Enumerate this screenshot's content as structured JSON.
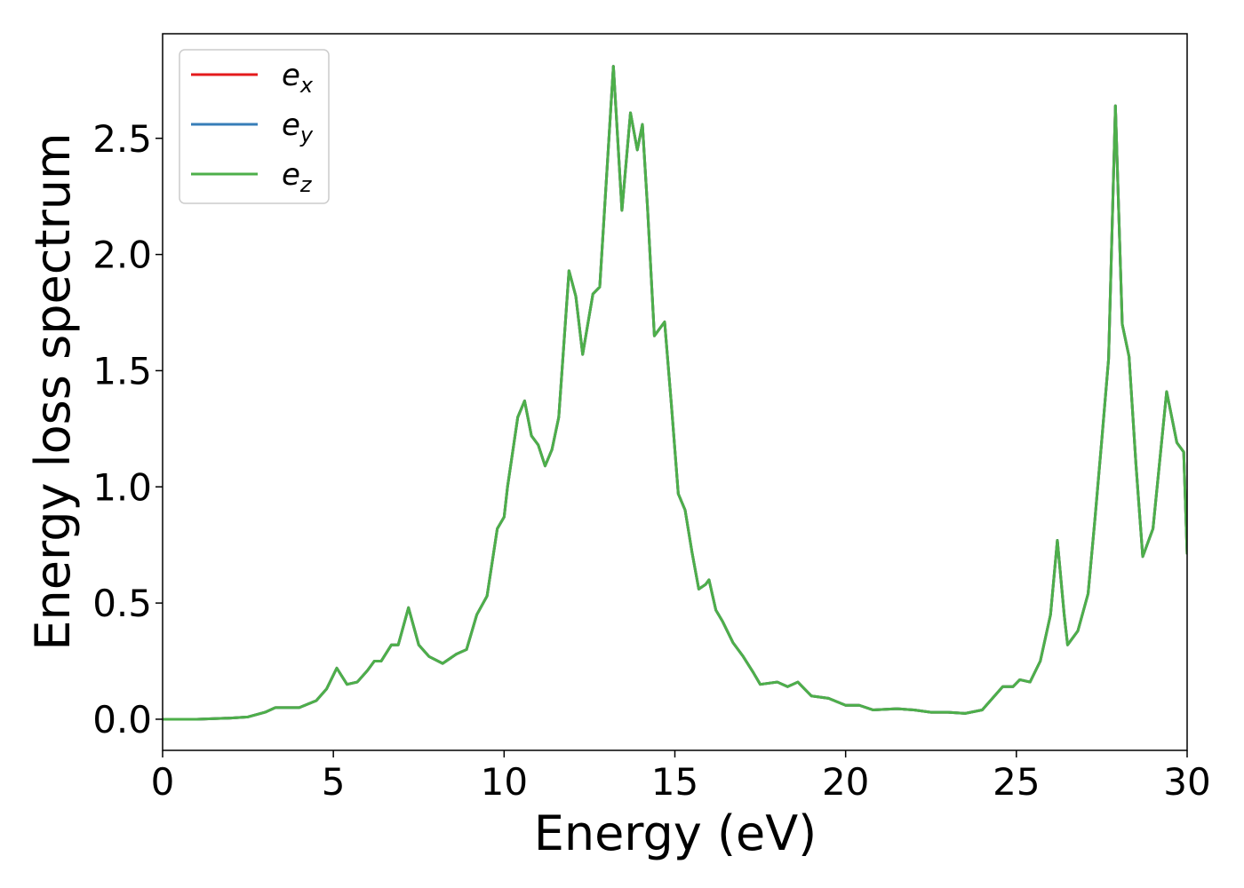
{
  "chart_data": {
    "type": "line",
    "xlabel": "Energy (eV)",
    "ylabel": "Energy loss spectrum",
    "x": [
      0,
      1,
      2,
      2.5,
      3,
      3.3,
      4,
      4.5,
      4.8,
      5.1,
      5.4,
      5.7,
      6,
      6.2,
      6.4,
      6.7,
      6.9,
      7.2,
      7.5,
      7.8,
      8.2,
      8.6,
      8.9,
      9.2,
      9.5,
      9.8,
      10,
      10.1,
      10.4,
      10.6,
      10.8,
      11,
      11.2,
      11.4,
      11.6,
      11.9,
      12.1,
      12.3,
      12.6,
      12.8,
      13.2,
      13.45,
      13.7,
      13.9,
      14.05,
      14.2,
      14.4,
      14.7,
      14.9,
      15.1,
      15.3,
      15.5,
      15.7,
      15.9,
      16,
      16.2,
      16.4,
      16.7,
      17,
      17.3,
      17.5,
      18,
      18.3,
      18.6,
      19,
      19.5,
      20,
      20.4,
      20.8,
      21.5,
      22,
      22.5,
      23,
      23.5,
      24,
      24.3,
      24.6,
      24.9,
      25.1,
      25.4,
      25.7,
      26,
      26.2,
      26.4,
      26.5,
      26.8,
      27.1,
      27.3,
      27.5,
      27.7,
      27.9,
      28.1,
      28.3,
      28.5,
      28.7,
      29,
      29.4,
      29.7,
      29.9,
      30
    ],
    "series": [
      {
        "name": "ex",
        "color": "#e41a1c",
        "values": [
          0,
          0,
          0.005,
          0.01,
          0.03,
          0.05,
          0.05,
          0.08,
          0.13,
          0.22,
          0.15,
          0.16,
          0.21,
          0.25,
          0.25,
          0.32,
          0.32,
          0.48,
          0.32,
          0.27,
          0.24,
          0.28,
          0.3,
          0.45,
          0.53,
          0.82,
          0.87,
          1.0,
          1.3,
          1.37,
          1.22,
          1.18,
          1.09,
          1.16,
          1.3,
          1.93,
          1.82,
          1.57,
          1.83,
          1.86,
          2.81,
          2.19,
          2.61,
          2.45,
          2.56,
          2.2,
          1.65,
          1.71,
          1.35,
          0.97,
          0.9,
          0.72,
          0.56,
          0.58,
          0.6,
          0.47,
          0.42,
          0.33,
          0.27,
          0.2,
          0.15,
          0.16,
          0.14,
          0.16,
          0.1,
          0.09,
          0.06,
          0.06,
          0.04,
          0.045,
          0.04,
          0.03,
          0.03,
          0.025,
          0.04,
          0.09,
          0.14,
          0.14,
          0.17,
          0.16,
          0.25,
          0.45,
          0.77,
          0.45,
          0.32,
          0.38,
          0.54,
          0.86,
          1.2,
          1.55,
          2.64,
          1.7,
          1.56,
          1.1,
          0.7,
          0.82,
          1.41,
          1.19,
          1.15,
          0.71
        ]
      },
      {
        "name": "ey",
        "color": "#377eb8",
        "values": [
          0,
          0,
          0.005,
          0.01,
          0.03,
          0.05,
          0.05,
          0.08,
          0.13,
          0.22,
          0.15,
          0.16,
          0.21,
          0.25,
          0.25,
          0.32,
          0.32,
          0.48,
          0.32,
          0.27,
          0.24,
          0.28,
          0.3,
          0.45,
          0.53,
          0.82,
          0.87,
          1.0,
          1.3,
          1.37,
          1.22,
          1.18,
          1.09,
          1.16,
          1.3,
          1.93,
          1.82,
          1.57,
          1.83,
          1.86,
          2.81,
          2.19,
          2.61,
          2.45,
          2.56,
          2.2,
          1.65,
          1.71,
          1.35,
          0.97,
          0.9,
          0.72,
          0.56,
          0.58,
          0.6,
          0.47,
          0.42,
          0.33,
          0.27,
          0.2,
          0.15,
          0.16,
          0.14,
          0.16,
          0.1,
          0.09,
          0.06,
          0.06,
          0.04,
          0.045,
          0.04,
          0.03,
          0.03,
          0.025,
          0.04,
          0.09,
          0.14,
          0.14,
          0.17,
          0.16,
          0.25,
          0.45,
          0.77,
          0.45,
          0.32,
          0.38,
          0.54,
          0.86,
          1.2,
          1.55,
          2.64,
          1.7,
          1.56,
          1.1,
          0.7,
          0.82,
          1.41,
          1.19,
          1.15,
          0.71
        ]
      },
      {
        "name": "ez",
        "color": "#4daf4a",
        "values": [
          0,
          0,
          0.005,
          0.01,
          0.03,
          0.05,
          0.05,
          0.08,
          0.13,
          0.22,
          0.15,
          0.16,
          0.21,
          0.25,
          0.25,
          0.32,
          0.32,
          0.48,
          0.32,
          0.27,
          0.24,
          0.28,
          0.3,
          0.45,
          0.53,
          0.82,
          0.87,
          1.0,
          1.3,
          1.37,
          1.22,
          1.18,
          1.09,
          1.16,
          1.3,
          1.93,
          1.82,
          1.57,
          1.83,
          1.86,
          2.81,
          2.19,
          2.61,
          2.45,
          2.56,
          2.2,
          1.65,
          1.71,
          1.35,
          0.97,
          0.9,
          0.72,
          0.56,
          0.58,
          0.6,
          0.47,
          0.42,
          0.33,
          0.27,
          0.2,
          0.15,
          0.16,
          0.14,
          0.16,
          0.1,
          0.09,
          0.06,
          0.06,
          0.04,
          0.045,
          0.04,
          0.03,
          0.03,
          0.025,
          0.04,
          0.09,
          0.14,
          0.14,
          0.17,
          0.16,
          0.25,
          0.45,
          0.77,
          0.45,
          0.32,
          0.38,
          0.54,
          0.86,
          1.2,
          1.55,
          2.64,
          1.7,
          1.56,
          1.1,
          0.7,
          0.82,
          1.41,
          1.19,
          1.15,
          0.71
        ]
      }
    ],
    "xlim": [
      0,
      30
    ],
    "xticks": [
      0,
      5,
      10,
      15,
      20,
      25,
      30
    ],
    "ylim": [
      -0.134,
      2.95
    ],
    "yticks": [
      {
        "value": 0,
        "label": "0.0"
      },
      0.5,
      {
        "value": 1,
        "label": "1.0"
      },
      1.5,
      {
        "value": 2,
        "label": "2.0"
      },
      2.5
    ],
    "legend": "upper left"
  }
}
